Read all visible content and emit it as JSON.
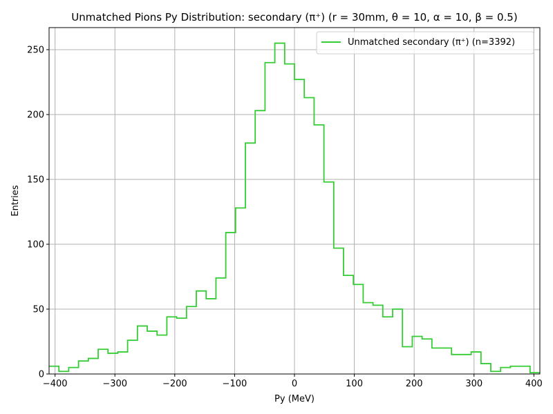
{
  "chart_data": {
    "type": "histogram-step",
    "title": "Unmatched Pions Py Distribution: secondary (π⁺) (r = 30mm, θ = 10, α = 10, β = 0.5)",
    "xlabel": "Py (MeV)",
    "ylabel": "Entries",
    "xlim": [
      -410,
      410
    ],
    "ylim": [
      0,
      267
    ],
    "grid": true,
    "legend_position": "top-right",
    "x_ticks": [
      -400,
      -300,
      -200,
      -100,
      0,
      100,
      200,
      300,
      400
    ],
    "x_tick_labels": [
      "−400",
      "−300",
      "−200",
      "−100",
      "0",
      "100",
      "200",
      "300",
      "400"
    ],
    "y_ticks": [
      0,
      50,
      100,
      150,
      200,
      250
    ],
    "y_tick_labels": [
      "0",
      "50",
      "100",
      "150",
      "200",
      "250"
    ],
    "series": [
      {
        "name": "Unmatched secondary (π⁺) (n=3392)",
        "color": "#33cc33",
        "bin_edges": [
          -410,
          -393.6,
          -377.2,
          -360.8,
          -344.4,
          -328,
          -311.6,
          -295.2,
          -278.8,
          -262.4,
          -246,
          -229.6,
          -213.2,
          -196.8,
          -180.4,
          -164,
          -147.6,
          -131.2,
          -114.8,
          -98.4,
          -82,
          -65.6,
          -49.2,
          -32.8,
          -16.4,
          0,
          16.4,
          32.8,
          49.2,
          65.6,
          82,
          98.4,
          114.8,
          131.2,
          147.6,
          164,
          180.4,
          196.8,
          213.2,
          229.6,
          246,
          262.4,
          278.8,
          295.2,
          311.6,
          328,
          344.4,
          360.8,
          377.2,
          393.6,
          410
        ],
        "counts": [
          6,
          2,
          5,
          10,
          12,
          19,
          16,
          17,
          26,
          37,
          33,
          30,
          44,
          43,
          52,
          64,
          58,
          74,
          109,
          128,
          178,
          203,
          240,
          255,
          239,
          227,
          213,
          192,
          148,
          97,
          76,
          69,
          55,
          53,
          44,
          50,
          21,
          29,
          27,
          20,
          20,
          15,
          15,
          17,
          8,
          2,
          5,
          6,
          6,
          1
        ]
      }
    ]
  }
}
